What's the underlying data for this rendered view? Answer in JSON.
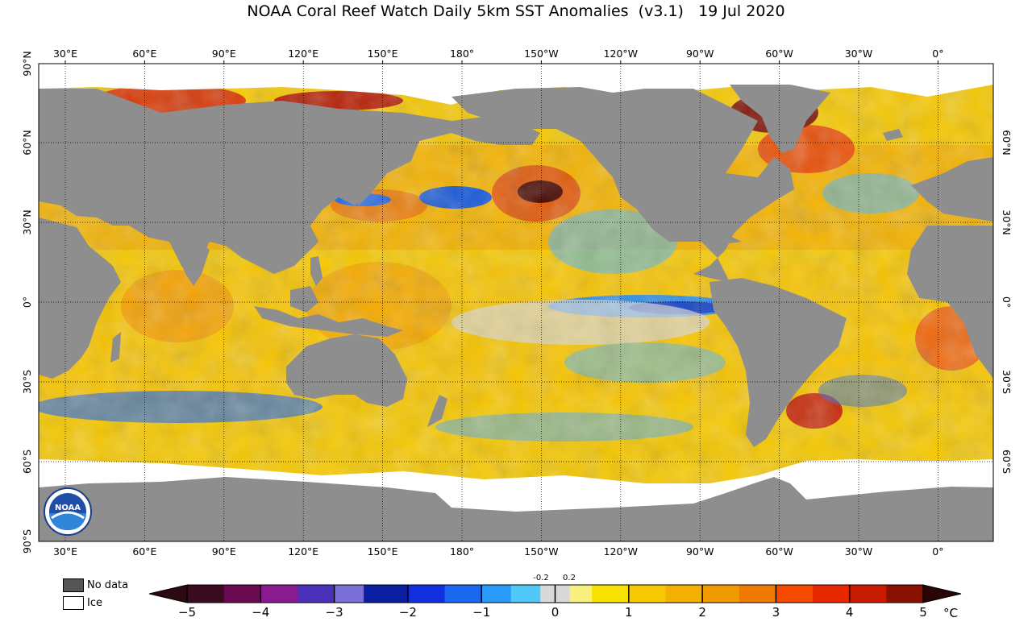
{
  "title": "NOAA Coral Reef Watch Daily 5km SST Anomalies  (v3.1)   19 Jul 2020",
  "lon_ticks": [
    "30°E",
    "60°E",
    "90°E",
    "120°E",
    "150°E",
    "180°",
    "150°W",
    "120°W",
    "90°W",
    "60°W",
    "30°W",
    "0°"
  ],
  "lat_ticks_left": [
    "90°N",
    "60°N",
    "30°N",
    "0°",
    "30°S",
    "60°S",
    "90°S"
  ],
  "lat_ticks_right": [
    "60°N",
    "30°N",
    "0°",
    "30°S",
    "60°S"
  ],
  "legend": {
    "no_data": "No data",
    "ice": "Ice"
  },
  "logo": {
    "text": "NOAA"
  },
  "colorbar": {
    "ticks": [
      "−5",
      "−4",
      "−3",
      "−2",
      "−1",
      "0",
      "1",
      "2",
      "3",
      "4",
      "5"
    ],
    "unit": "°C",
    "neutral_low": "-0.2",
    "neutral_high": "0.2"
  },
  "colors": {
    "land": "#8e8e8e",
    "ice": "#ffffff",
    "warm": "#f5c400",
    "hot": "#e8520b",
    "cool": "#2aa0f0",
    "neutral": "#d9d9d9"
  }
}
